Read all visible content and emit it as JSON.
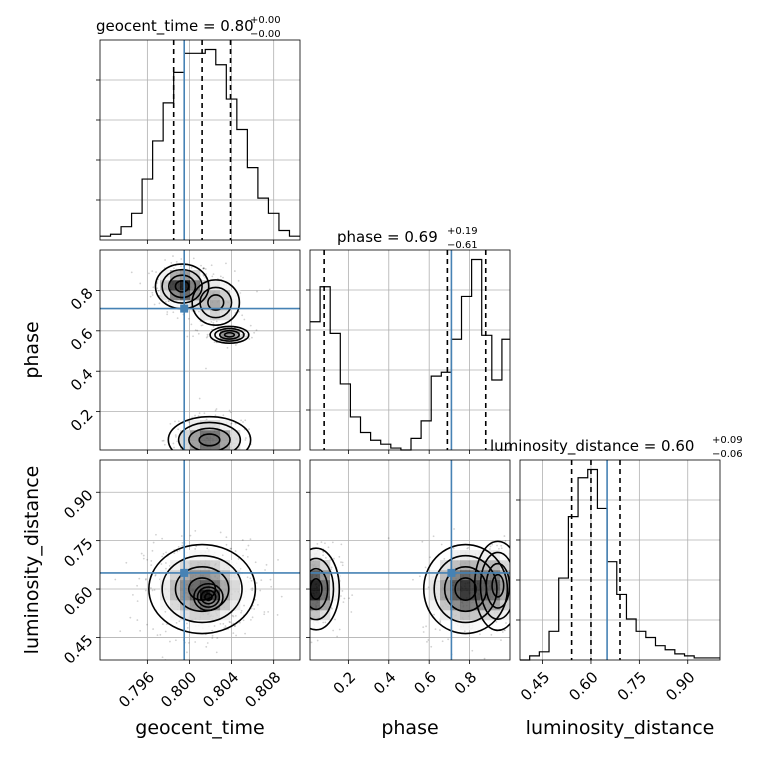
{
  "chart_data": {
    "type": "corner",
    "grid": true,
    "truth_color": "#4682b4",
    "parameters": [
      {
        "name": "geocent_time",
        "label": "geocent_time",
        "title_main": "geocent_time = 0.80",
        "title_sup": "+0.00",
        "title_sub": "−0.00",
        "range": [
          0.7915,
          0.8105
        ],
        "ticks": [
          0.796,
          0.8,
          0.804,
          0.808
        ],
        "tick_labels": [
          "0.796",
          "0.800",
          "0.804",
          "0.808"
        ],
        "truth": 0.7995,
        "quantiles": [
          0.7985,
          0.8012,
          0.8039
        ],
        "hist": {
          "edges": [
            0.7915,
            0.7925,
            0.7935,
            0.7945,
            0.7955,
            0.7965,
            0.7975,
            0.7985,
            0.7995,
            0.8005,
            0.8015,
            0.8025,
            0.8035,
            0.8045,
            0.8055,
            0.8065,
            0.8075,
            0.8085,
            0.8095,
            0.8105
          ],
          "counts": [
            2,
            3,
            7,
            14,
            32,
            52,
            72,
            88,
            98,
            98,
            100,
            92,
            74,
            58,
            38,
            22,
            14,
            5,
            2
          ]
        }
      },
      {
        "name": "phase",
        "label": "phase",
        "title_main": "phase = 0.69",
        "title_sup": "+0.19",
        "title_sub": "−0.61",
        "range": [
          0.01,
          1.0
        ],
        "ticks": [
          0.2,
          0.4,
          0.6,
          0.8
        ],
        "tick_labels": [
          "0.2",
          "0.4",
          "0.6",
          "0.8"
        ],
        "truth": 0.71,
        "quantiles": [
          0.08,
          0.69,
          0.88
        ],
        "hist": {
          "edges": [
            0.01,
            0.06,
            0.11,
            0.16,
            0.21,
            0.26,
            0.31,
            0.36,
            0.41,
            0.46,
            0.51,
            0.56,
            0.61,
            0.66,
            0.71,
            0.76,
            0.81,
            0.86,
            0.91,
            0.96,
            1.0
          ],
          "counts": [
            66,
            84,
            60,
            34,
            17,
            9,
            5,
            3,
            1,
            0,
            6,
            15,
            38,
            40,
            57,
            79,
            98,
            59,
            36,
            57
          ]
        }
      },
      {
        "name": "luminosity_distance",
        "label": "luminosity_distance",
        "title_main": "luminosity_distance = 0.60",
        "title_sup": "+0.09",
        "title_sub": "−0.06",
        "range": [
          0.38,
          1.0
        ],
        "ticks": [
          0.45,
          0.6,
          0.75,
          0.9
        ],
        "tick_labels": [
          "0.45",
          "0.60",
          "0.75",
          "0.90"
        ],
        "truth": 0.65,
        "quantiles": [
          0.54,
          0.6,
          0.69
        ],
        "hist": {
          "edges": [
            0.38,
            0.41,
            0.44,
            0.47,
            0.5,
            0.53,
            0.56,
            0.59,
            0.62,
            0.65,
            0.68,
            0.71,
            0.74,
            0.77,
            0.8,
            0.83,
            0.86,
            0.89,
            0.92,
            0.95,
            1.0
          ],
          "counts": [
            0,
            2,
            4,
            14,
            40,
            70,
            89,
            93,
            74,
            48,
            32,
            20,
            14,
            11,
            7,
            5,
            3,
            2,
            1,
            1
          ]
        }
      }
    ],
    "panels_2d": [
      {
        "x": "geocent_time",
        "y": "phase",
        "modes": [
          {
            "cx": 0.7993,
            "cy": 0.82,
            "sx": 0.0011,
            "sy": 0.048,
            "w": 1.0
          },
          {
            "cx": 0.8019,
            "cy": 0.06,
            "sx": 0.0017,
            "sy": 0.05,
            "w": 0.75
          },
          {
            "cx": 0.8025,
            "cy": 0.74,
            "sx": 0.0013,
            "sy": 0.065,
            "w": 0.45
          },
          {
            "cx": 0.8038,
            "cy": 0.58,
            "sx": 0.0008,
            "sy": 0.018,
            "w": 0.55
          }
        ]
      },
      {
        "x": "geocent_time",
        "y": "luminosity_distance",
        "modes": [
          {
            "cx": 0.8012,
            "cy": 0.6,
            "sx": 0.0022,
            "sy": 0.06,
            "w": 1.0
          },
          {
            "cx": 0.8018,
            "cy": 0.575,
            "sx": 0.0006,
            "sy": 0.018,
            "w": 0.5
          }
        ]
      },
      {
        "x": "phase",
        "y": "luminosity_distance",
        "modes": [
          {
            "cx": 0.04,
            "cy": 0.6,
            "sx": 0.05,
            "sy": 0.055,
            "w": 1.0
          },
          {
            "cx": 0.78,
            "cy": 0.6,
            "sx": 0.09,
            "sy": 0.06,
            "w": 0.9
          },
          {
            "cx": 0.94,
            "cy": 0.61,
            "sx": 0.05,
            "sy": 0.06,
            "w": 0.5
          }
        ]
      }
    ]
  }
}
